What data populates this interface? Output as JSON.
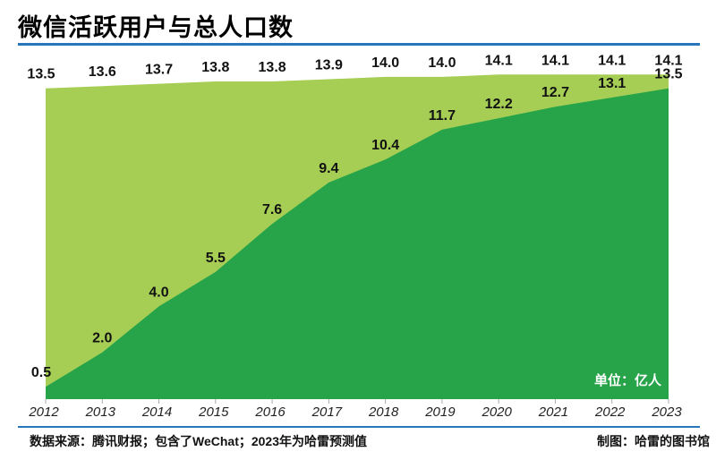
{
  "header": {
    "title": "微信活跃用户与总人口数"
  },
  "footer": {
    "source": "数据来源：腾讯财报；包含了WeChat；2023年为哈雷预测值",
    "credit": "制图：哈雷的图书馆"
  },
  "chart_data": {
    "type": "area",
    "title": "微信活跃用户与总人口数",
    "unit_label": "单位：亿人",
    "categories": [
      "2012",
      "2013",
      "2014",
      "2015",
      "2016",
      "2017",
      "2018",
      "2019",
      "2020",
      "2021",
      "2022",
      "2023"
    ],
    "series": [
      {
        "id": "total-population",
        "name": "总人口数",
        "values": [
          13.5,
          13.6,
          13.7,
          13.8,
          13.8,
          13.9,
          14.0,
          14.0,
          14.1,
          14.1,
          14.1,
          14.1
        ],
        "color": "#a6ce55"
      },
      {
        "id": "wechat-active-users",
        "name": "微信活跃用户",
        "values": [
          0.5,
          2.0,
          4.0,
          5.5,
          7.6,
          9.4,
          10.4,
          11.7,
          12.2,
          12.7,
          13.1,
          13.5
        ],
        "color": "#27a449"
      }
    ],
    "value_labels": true,
    "value_label_color": "#111111",
    "xlabel": "",
    "ylabel": "",
    "ylim": [
      0,
      14.1
    ],
    "grid": false,
    "legend_position": "none",
    "tick_color": "#aaaaaa",
    "axis_label_color": "#222222",
    "accent_blue": "#2776b9"
  }
}
